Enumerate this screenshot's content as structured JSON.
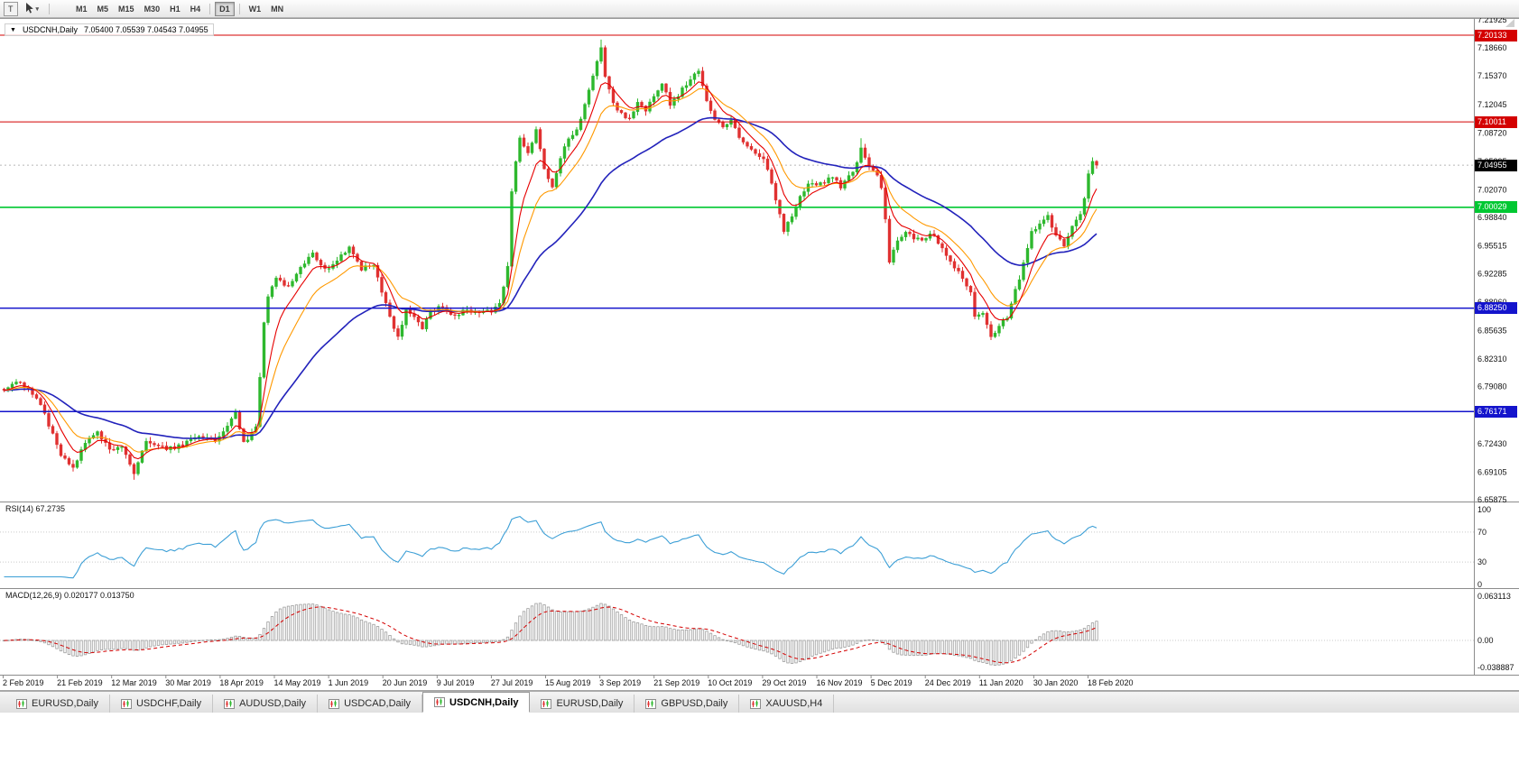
{
  "toolbar": {
    "templates_button_label": "T",
    "timeframes": [
      "M1",
      "M5",
      "M15",
      "M30",
      "H1",
      "H4",
      "D1",
      "W1",
      "MN"
    ],
    "active_timeframe": "D1"
  },
  "chart": {
    "title": "USDCNH,Daily",
    "ohlc_text": "7.05400 7.05539 7.04543 7.04955",
    "open": "7.05400",
    "high": "7.05539",
    "low": "7.04543",
    "close": "7.04955",
    "current_price": "7.04955",
    "up_color": "#2eb82e",
    "down_color": "#e03131",
    "ma_colors": {
      "fast": "#e60000",
      "medium": "#ff9900",
      "slow": "#2222bb"
    },
    "levels": [
      {
        "value": "7.20133",
        "price": 7.20133,
        "color": "#d40000",
        "width": 1
      },
      {
        "value": "7.10011",
        "price": 7.10011,
        "color": "#d40000",
        "width": 1
      },
      {
        "value": "7.00029",
        "price": 7.00029,
        "color": "#00c832",
        "width": 1.6
      },
      {
        "value": "6.88250",
        "price": 6.8825,
        "color": "#1414cc",
        "width": 1.5
      },
      {
        "value": "6.76171",
        "price": 6.76171,
        "color": "#1414cc",
        "width": 1.5
      }
    ],
    "price_axis_labels": [
      "7.21925",
      "7.18660",
      "7.15370",
      "7.12045",
      "7.08720",
      "7.05395",
      "7.02070",
      "6.98840",
      "6.95515",
      "6.92285",
      "6.88960",
      "6.85635",
      "6.82310",
      "6.79080",
      "6.75755",
      "6.72430",
      "6.69105",
      "6.65875"
    ],
    "date_axis_labels": [
      "2 Feb 2019",
      "21 Feb 2019",
      "12 Mar 2019",
      "30 Mar 2019",
      "18 Apr 2019",
      "14 May 2019",
      "1 Jun 2019",
      "20 Jun 2019",
      "9 Jul 2019",
      "27 Jul 2019",
      "15 Aug 2019",
      "3 Sep 2019",
      "21 Sep 2019",
      "10 Oct 2019",
      "29 Oct 2019",
      "16 Nov 2019",
      "5 Dec 2019",
      "24 Dec 2019",
      "11 Jan 2020",
      "30 Jan 2020",
      "18 Feb 2020"
    ]
  },
  "rsi": {
    "label": "RSI(14) 67.2735",
    "name": "RSI(14)",
    "value": "67.2735",
    "axis_labels": [
      "100",
      "70",
      "30",
      "0"
    ],
    "line_color": "#3c9fd6"
  },
  "macd": {
    "label": "MACD(12,26,9) 0.020177 0.013750",
    "name": "MACD(12,26,9)",
    "main_value": "0.020177",
    "signal_value": "0.013750",
    "axis_labels": [
      "0.063113",
      "0.00",
      "-0.038887"
    ],
    "histogram_color": "#9c9c9c",
    "signal_color": "#d40000"
  },
  "tabs": [
    {
      "label": "EURUSD,Daily",
      "active": false
    },
    {
      "label": "USDCHF,Daily",
      "active": false
    },
    {
      "label": "AUDUSD,Daily",
      "active": false
    },
    {
      "label": "USDCAD,Daily",
      "active": false
    },
    {
      "label": "USDCNH,Daily",
      "active": true
    },
    {
      "label": "EURUSD,Daily",
      "active": false
    },
    {
      "label": "GBPUSD,Daily",
      "active": false
    },
    {
      "label": "XAUUSD,H4",
      "active": false
    }
  ],
  "chart_data": {
    "type": "candlestick",
    "symbol": "USDCNH",
    "timeframe": "D1",
    "y_range": [
      6.65875,
      7.21925
    ],
    "num_candles": 270,
    "horizontal_levels": [
      7.20133,
      7.10011,
      7.00029,
      6.8825,
      6.76171
    ],
    "indicators": [
      {
        "type": "RSI",
        "period": 14,
        "last": 67.2735,
        "levels": [
          70,
          30
        ]
      },
      {
        "type": "MACD",
        "fast": 12,
        "slow": 26,
        "signal": 9,
        "last_main": 0.020177,
        "last_signal": 0.01375
      }
    ],
    "overlays": [
      "fast red MA",
      "medium orange MA",
      "slow blue MA"
    ],
    "price_path_anchors": [
      [
        0,
        6.785
      ],
      [
        3,
        6.797
      ],
      [
        6,
        6.788
      ],
      [
        9,
        6.77
      ],
      [
        12,
        6.735
      ],
      [
        14,
        6.712
      ],
      [
        17,
        6.697
      ],
      [
        20,
        6.725
      ],
      [
        23,
        6.737
      ],
      [
        26,
        6.716
      ],
      [
        29,
        6.721
      ],
      [
        32,
        6.69
      ],
      [
        35,
        6.728
      ],
      [
        40,
        6.718
      ],
      [
        44,
        6.723
      ],
      [
        48,
        6.731
      ],
      [
        52,
        6.728
      ],
      [
        55,
        6.746
      ],
      [
        57,
        6.762
      ],
      [
        59,
        6.725
      ],
      [
        62,
        6.743
      ],
      [
        63,
        6.802
      ],
      [
        64,
        6.868
      ],
      [
        65,
        6.897
      ],
      [
        67,
        6.916
      ],
      [
        70,
        6.906
      ],
      [
        73,
        6.932
      ],
      [
        76,
        6.946
      ],
      [
        79,
        6.928
      ],
      [
        82,
        6.938
      ],
      [
        85,
        6.954
      ],
      [
        88,
        6.929
      ],
      [
        91,
        6.933
      ],
      [
        93,
        6.901
      ],
      [
        95,
        6.873
      ],
      [
        97,
        6.849
      ],
      [
        99,
        6.879
      ],
      [
        101,
        6.873
      ],
      [
        103,
        6.858
      ],
      [
        105,
        6.879
      ],
      [
        108,
        6.884
      ],
      [
        111,
        6.874
      ],
      [
        114,
        6.881
      ],
      [
        117,
        6.875
      ],
      [
        120,
        6.88
      ],
      [
        122,
        6.887
      ],
      [
        124,
        6.932
      ],
      [
        125,
        7.02
      ],
      [
        126,
        7.052
      ],
      [
        127,
        7.079
      ],
      [
        129,
        7.063
      ],
      [
        131,
        7.093
      ],
      [
        133,
        7.043
      ],
      [
        135,
        7.025
      ],
      [
        137,
        7.059
      ],
      [
        139,
        7.079
      ],
      [
        141,
        7.089
      ],
      [
        143,
        7.119
      ],
      [
        145,
        7.153
      ],
      [
        147,
        7.189
      ],
      [
        148,
        7.153
      ],
      [
        150,
        7.123
      ],
      [
        152,
        7.109
      ],
      [
        154,
        7.103
      ],
      [
        156,
        7.123
      ],
      [
        158,
        7.113
      ],
      [
        160,
        7.129
      ],
      [
        162,
        7.144
      ],
      [
        164,
        7.121
      ],
      [
        166,
        7.132
      ],
      [
        169,
        7.149
      ],
      [
        171,
        7.159
      ],
      [
        173,
        7.123
      ],
      [
        175,
        7.103
      ],
      [
        177,
        7.093
      ],
      [
        179,
        7.101
      ],
      [
        181,
        7.083
      ],
      [
        183,
        7.073
      ],
      [
        185,
        7.063
      ],
      [
        187,
        7.059
      ],
      [
        189,
        7.029
      ],
      [
        191,
        6.99
      ],
      [
        192,
        6.972
      ],
      [
        194,
        6.991
      ],
      [
        196,
        7.013
      ],
      [
        198,
        7.027
      ],
      [
        200,
        7.025
      ],
      [
        202,
        7.031
      ],
      [
        204,
        7.035
      ],
      [
        206,
        7.025
      ],
      [
        208,
        7.035
      ],
      [
        210,
        7.051
      ],
      [
        211,
        7.071
      ],
      [
        212,
        7.057
      ],
      [
        213,
        7.049
      ],
      [
        215,
        7.039
      ],
      [
        216,
        7.021
      ],
      [
        217,
        6.986
      ],
      [
        218,
        6.936
      ],
      [
        219,
        6.949
      ],
      [
        220,
        6.959
      ],
      [
        222,
        6.971
      ],
      [
        224,
        6.965
      ],
      [
        226,
        6.961
      ],
      [
        228,
        6.971
      ],
      [
        230,
        6.959
      ],
      [
        232,
        6.943
      ],
      [
        234,
        6.931
      ],
      [
        236,
        6.919
      ],
      [
        238,
        6.899
      ],
      [
        239,
        6.873
      ],
      [
        241,
        6.879
      ],
      [
        243,
        6.849
      ],
      [
        245,
        6.861
      ],
      [
        247,
        6.873
      ],
      [
        249,
        6.903
      ],
      [
        251,
        6.933
      ],
      [
        253,
        6.971
      ],
      [
        255,
        6.983
      ],
      [
        257,
        6.989
      ],
      [
        259,
        6.969
      ],
      [
        261,
        6.957
      ],
      [
        263,
        6.976
      ],
      [
        265,
        6.993
      ],
      [
        266,
        7.009
      ],
      [
        267,
        7.041
      ],
      [
        268,
        7.054
      ],
      [
        269,
        7.04955
      ]
    ]
  }
}
